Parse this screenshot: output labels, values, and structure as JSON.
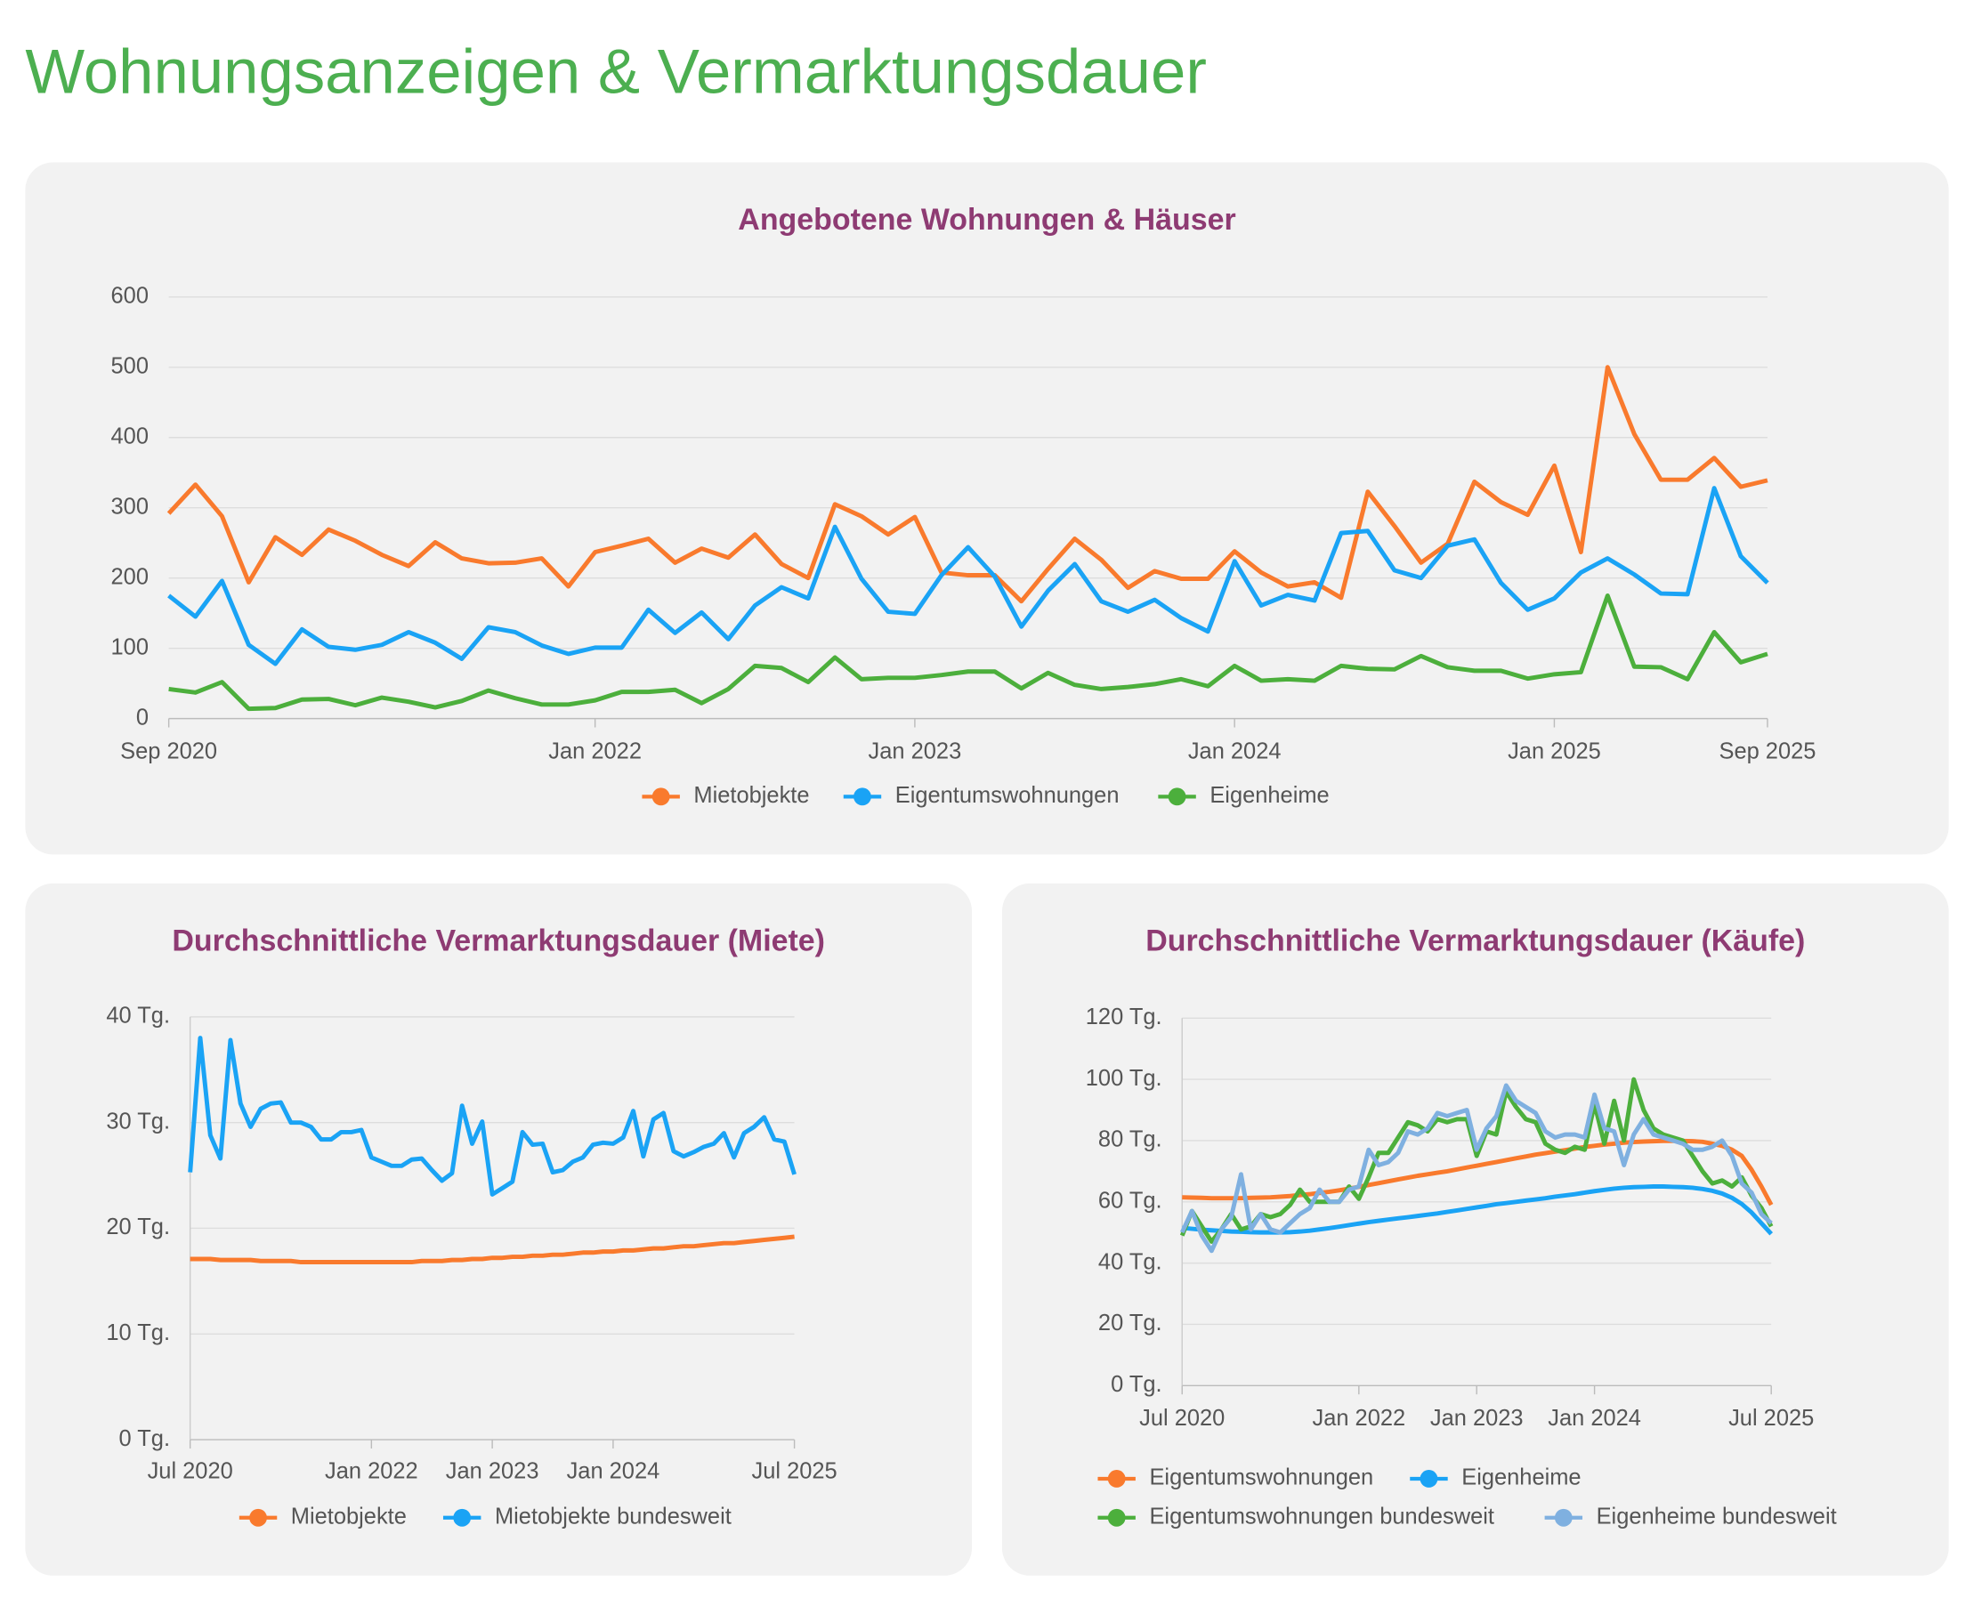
{
  "header": {
    "title": "Wohnungsanzeigen & Vermarktungsdauer"
  },
  "chart_data": [
    {
      "type": "line",
      "title": "Angebotene Wohnungen & Häuser",
      "x": [
        "2020-09",
        "2020-10",
        "2020-11",
        "2020-12",
        "2021-01",
        "2021-02",
        "2021-03",
        "2021-04",
        "2021-05",
        "2021-06",
        "2021-07",
        "2021-08",
        "2021-09",
        "2021-10",
        "2021-11",
        "2021-12",
        "2022-01",
        "2022-02",
        "2022-03",
        "2022-04",
        "2022-05",
        "2022-06",
        "2022-07",
        "2022-08",
        "2022-09",
        "2022-10",
        "2022-11",
        "2022-12",
        "2023-01",
        "2023-02",
        "2023-03",
        "2023-04",
        "2023-05",
        "2023-06",
        "2023-07",
        "2023-08",
        "2023-09",
        "2023-10",
        "2023-11",
        "2023-12",
        "2024-01",
        "2024-02",
        "2024-03",
        "2024-04",
        "2024-05",
        "2024-06",
        "2024-07",
        "2024-08",
        "2024-09",
        "2024-10",
        "2024-11",
        "2024-12",
        "2025-01",
        "2025-02",
        "2025-03",
        "2025-04",
        "2025-05",
        "2025-06",
        "2025-07",
        "2025-08",
        "2025-09"
      ],
      "xlim": [
        "2020-09",
        "2025-09"
      ],
      "xticks": [
        {
          "value": "2020-09",
          "label": "Sep 2020"
        },
        {
          "value": "2022-01",
          "label": "Jan 2022"
        },
        {
          "value": "2023-01",
          "label": "Jan 2023"
        },
        {
          "value": "2024-01",
          "label": "Jan 2024"
        },
        {
          "value": "2025-01",
          "label": "Jan 2025"
        },
        {
          "value": "2025-09",
          "label": "Sep 2025"
        }
      ],
      "ylim": [
        0,
        600
      ],
      "yticks": [
        0,
        100,
        200,
        300,
        400,
        500,
        600
      ],
      "grid": true,
      "legend": "bottom",
      "series": [
        {
          "name": "Mietobjekte",
          "color": "#f97a2d",
          "values": [
            292,
            333,
            288,
            194,
            258,
            233,
            269,
            253,
            233,
            217,
            251,
            228,
            221,
            222,
            228,
            188,
            237,
            246,
            256,
            222,
            242,
            229,
            262,
            220,
            200,
            305,
            288,
            262,
            287,
            208,
            204,
            204,
            167,
            213,
            256,
            226,
            186,
            210,
            199,
            199,
            238,
            208,
            188,
            194,
            172,
            323,
            274,
            222,
            249,
            337,
            308,
            290,
            360,
            237,
            500,
            405,
            340,
            340,
            371,
            330,
            339
          ]
        },
        {
          "name": "Eigentumswohnungen",
          "color": "#1aa3f5",
          "values": [
            175,
            145,
            196,
            105,
            78,
            127,
            102,
            98,
            105,
            123,
            108,
            85,
            130,
            123,
            104,
            92,
            101,
            101,
            155,
            122,
            151,
            113,
            161,
            187,
            171,
            273,
            199,
            152,
            149,
            204,
            244,
            202,
            131,
            182,
            220,
            167,
            152,
            169,
            143,
            124,
            224,
            161,
            176,
            168,
            264,
            267,
            211,
            200,
            246,
            255,
            193,
            155,
            171,
            208,
            228,
            205,
            178,
            177,
            328,
            231,
            193
          ]
        },
        {
          "name": "Eigenheime",
          "color": "#4caf3c",
          "values": [
            42,
            37,
            52,
            14,
            15,
            27,
            28,
            19,
            30,
            24,
            16,
            25,
            40,
            29,
            20,
            20,
            26,
            38,
            38,
            41,
            22,
            42,
            75,
            72,
            52,
            87,
            56,
            58,
            58,
            62,
            67,
            67,
            43,
            65,
            48,
            42,
            45,
            49,
            56,
            46,
            75,
            54,
            56,
            54,
            75,
            71,
            70,
            89,
            73,
            68,
            68,
            57,
            63,
            66,
            175,
            74,
            73,
            56,
            123,
            80,
            92
          ]
        }
      ]
    },
    {
      "type": "line",
      "title": "Durchschnittliche Vermarktungsdauer (Miete)",
      "x": [
        "2020-07",
        "2020-08",
        "2020-09",
        "2020-10",
        "2020-11",
        "2020-12",
        "2021-01",
        "2021-02",
        "2021-03",
        "2021-04",
        "2021-05",
        "2021-06",
        "2021-07",
        "2021-08",
        "2021-09",
        "2021-10",
        "2021-11",
        "2021-12",
        "2022-01",
        "2022-02",
        "2022-03",
        "2022-04",
        "2022-05",
        "2022-06",
        "2022-07",
        "2022-08",
        "2022-09",
        "2022-10",
        "2022-11",
        "2022-12",
        "2023-01",
        "2023-02",
        "2023-03",
        "2023-04",
        "2023-05",
        "2023-06",
        "2023-07",
        "2023-08",
        "2023-09",
        "2023-10",
        "2023-11",
        "2023-12",
        "2024-01",
        "2024-02",
        "2024-03",
        "2024-04",
        "2024-05",
        "2024-06",
        "2024-07",
        "2024-08",
        "2024-09",
        "2024-10",
        "2024-11",
        "2024-12",
        "2025-01",
        "2025-02",
        "2025-03",
        "2025-04",
        "2025-05",
        "2025-06",
        "2025-07"
      ],
      "xlim": [
        "2020-07",
        "2025-07"
      ],
      "xticks": [
        {
          "value": "2020-07",
          "label": "Jul 2020"
        },
        {
          "value": "2022-01",
          "label": "Jan 2022"
        },
        {
          "value": "2023-01",
          "label": "Jan 2023"
        },
        {
          "value": "2024-01",
          "label": "Jan 2024"
        },
        {
          "value": "2025-07",
          "label": "Jul 2025"
        }
      ],
      "ylim": [
        0,
        40
      ],
      "yticks": [
        {
          "value": 0,
          "label": "0 Tg."
        },
        {
          "value": 10,
          "label": "10 Tg."
        },
        {
          "value": 20,
          "label": "20 Tg."
        },
        {
          "value": 30,
          "label": "30 Tg."
        },
        {
          "value": 40,
          "label": "40 Tg."
        }
      ],
      "grid": true,
      "legend": "bottom",
      "series": [
        {
          "name": "Mietobjekte",
          "color": "#f97a2d",
          "values": [
            17.1,
            17.1,
            17.1,
            17.0,
            17.0,
            17.0,
            17.0,
            16.9,
            16.9,
            16.9,
            16.9,
            16.8,
            16.8,
            16.8,
            16.8,
            16.8,
            16.8,
            16.8,
            16.8,
            16.8,
            16.8,
            16.8,
            16.8,
            16.9,
            16.9,
            16.9,
            17.0,
            17.0,
            17.1,
            17.1,
            17.2,
            17.2,
            17.3,
            17.3,
            17.4,
            17.4,
            17.5,
            17.5,
            17.6,
            17.7,
            17.7,
            17.8,
            17.8,
            17.9,
            17.9,
            18.0,
            18.1,
            18.1,
            18.2,
            18.3,
            18.3,
            18.4,
            18.5,
            18.6,
            18.6,
            18.7,
            18.8,
            18.9,
            19.0,
            19.1,
            19.2
          ]
        },
        {
          "name": "Mietobjekte bundesweit",
          "color": "#1aa3f5",
          "values": [
            25.3,
            38,
            28.8,
            26.6,
            37.8,
            31.8,
            29.6,
            31.3,
            31.8,
            31.9,
            30,
            30,
            29.6,
            28.4,
            28.4,
            29.1,
            29.1,
            29.3,
            26.7,
            26.3,
            25.9,
            25.9,
            26.5,
            26.6,
            25.5,
            24.5,
            25.2,
            31.6,
            28,
            30.1,
            23.2,
            23.8,
            24.4,
            29.1,
            27.9,
            28,
            25.3,
            25.5,
            26.3,
            26.7,
            27.9,
            28.1,
            28,
            28.6,
            31.1,
            26.8,
            30.3,
            30.9,
            27.3,
            26.8,
            27.2,
            27.7,
            28,
            29,
            26.7,
            29,
            29.6,
            30.5,
            28.4,
            28.2,
            25.1
          ]
        }
      ]
    },
    {
      "type": "line",
      "title": "Durchschnittliche Vermarktungsdauer (Käufe)",
      "x": [
        "2020-07",
        "2020-08",
        "2020-09",
        "2020-10",
        "2020-11",
        "2020-12",
        "2021-01",
        "2021-02",
        "2021-03",
        "2021-04",
        "2021-05",
        "2021-06",
        "2021-07",
        "2021-08",
        "2021-09",
        "2021-10",
        "2021-11",
        "2021-12",
        "2022-01",
        "2022-02",
        "2022-03",
        "2022-04",
        "2022-05",
        "2022-06",
        "2022-07",
        "2022-08",
        "2022-09",
        "2022-10",
        "2022-11",
        "2022-12",
        "2023-01",
        "2023-02",
        "2023-03",
        "2023-04",
        "2023-05",
        "2023-06",
        "2023-07",
        "2023-08",
        "2023-09",
        "2023-10",
        "2023-11",
        "2023-12",
        "2024-01",
        "2024-02",
        "2024-03",
        "2024-04",
        "2024-05",
        "2024-06",
        "2024-07",
        "2024-08",
        "2024-09",
        "2024-10",
        "2024-11",
        "2024-12",
        "2025-01",
        "2025-02",
        "2025-03",
        "2025-04",
        "2025-05",
        "2025-06",
        "2025-07"
      ],
      "xlim": [
        "2020-07",
        "2025-07"
      ],
      "xticks": [
        {
          "value": "2020-07",
          "label": "Jul 2020"
        },
        {
          "value": "2022-01",
          "label": "Jan 2022"
        },
        {
          "value": "2023-01",
          "label": "Jan 2023"
        },
        {
          "value": "2024-01",
          "label": "Jan 2024"
        },
        {
          "value": "2025-07",
          "label": "Jul 2025"
        }
      ],
      "ylim": [
        0,
        120
      ],
      "yticks": [
        {
          "value": 0,
          "label": "0 Tg."
        },
        {
          "value": 20,
          "label": "20 Tg."
        },
        {
          "value": 40,
          "label": "40 Tg."
        },
        {
          "value": 60,
          "label": "60 Tg."
        },
        {
          "value": 80,
          "label": "80 Tg."
        },
        {
          "value": 100,
          "label": "100 Tg."
        },
        {
          "value": 120,
          "label": "120 Tg."
        }
      ],
      "grid": true,
      "legend": "bottom",
      "series": [
        {
          "name": "Eigentumswohnungen",
          "color": "#f97a2d",
          "values": [
            61.5,
            61.4,
            61.3,
            61.2,
            61.2,
            61.2,
            61.2,
            61.3,
            61.4,
            61.5,
            61.7,
            61.9,
            62.2,
            62.5,
            62.9,
            63.3,
            63.8,
            64.3,
            64.9,
            65.5,
            66.1,
            66.7,
            67.3,
            67.9,
            68.5,
            69.0,
            69.5,
            70.0,
            70.6,
            71.2,
            71.8,
            72.4,
            73.0,
            73.6,
            74.2,
            74.8,
            75.4,
            75.9,
            76.4,
            76.9,
            77.4,
            77.9,
            78.3,
            78.7,
            79.0,
            79.3,
            79.5,
            79.7,
            79.8,
            79.9,
            79.9,
            79.9,
            79.8,
            79.6,
            79.0,
            78.3,
            77.0,
            75.0,
            70.5,
            65.0,
            59.0
          ]
        },
        {
          "name": "Eigenheime",
          "color": "#1aa3f5",
          "values": [
            51.5,
            51.2,
            50.9,
            50.7,
            50.5,
            50.3,
            50.2,
            50.1,
            50.0,
            50.0,
            50.0,
            50.1,
            50.3,
            50.6,
            51.0,
            51.4,
            51.9,
            52.4,
            52.9,
            53.4,
            53.8,
            54.2,
            54.6,
            55.0,
            55.4,
            55.8,
            56.2,
            56.7,
            57.2,
            57.7,
            58.2,
            58.7,
            59.2,
            59.6,
            60.0,
            60.4,
            60.8,
            61.2,
            61.7,
            62.1,
            62.5,
            63.0,
            63.5,
            63.9,
            64.3,
            64.6,
            64.8,
            64.9,
            65.0,
            65.0,
            64.9,
            64.8,
            64.6,
            64.2,
            63.6,
            62.7,
            61.3,
            59.3,
            56.5,
            53.0,
            49.5
          ]
        },
        {
          "name": "Eigentumswohnungen bundesweit",
          "color": "#4caf3c",
          "values": [
            49,
            57,
            52,
            47,
            51,
            56,
            51,
            52,
            56,
            55,
            56,
            59,
            64,
            60,
            60,
            60,
            60,
            65,
            61,
            68,
            76,
            76,
            81,
            86,
            85,
            83,
            87,
            86,
            87,
            87,
            75,
            83,
            82,
            96,
            91,
            87,
            86,
            79,
            77,
            76,
            78,
            77,
            92,
            79,
            93,
            80,
            100,
            90,
            84,
            82,
            81,
            80,
            75,
            70,
            66,
            67,
            65,
            68,
            62,
            58,
            52
          ]
        },
        {
          "name": "Eigenheime bundesweit",
          "color": "#7fb0e0",
          "values": [
            50,
            57,
            49,
            44,
            51,
            55,
            69,
            51,
            56,
            51,
            50,
            53,
            56,
            58,
            64,
            60,
            60,
            64,
            65,
            77,
            72,
            73,
            76,
            83,
            82,
            84,
            89,
            88,
            89,
            90,
            77,
            84,
            88,
            98,
            93,
            91,
            89,
            83,
            81,
            82,
            82,
            81,
            95,
            84,
            83,
            72,
            82,
            87,
            82,
            81,
            80,
            79,
            77,
            77,
            78,
            80,
            75,
            66,
            63,
            56,
            53
          ]
        }
      ]
    }
  ]
}
